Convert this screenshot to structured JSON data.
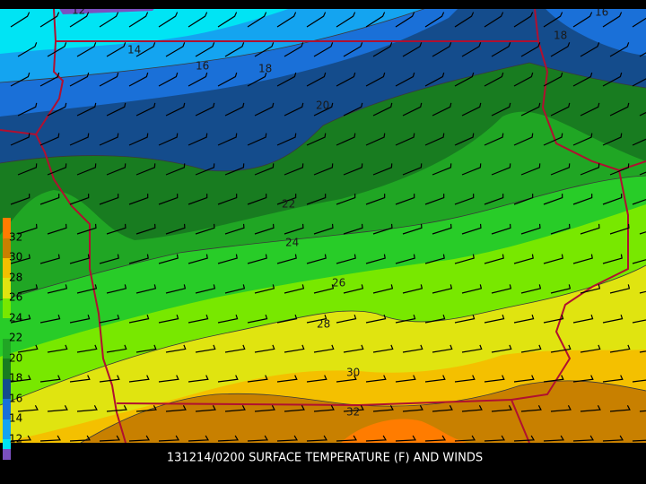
{
  "map": {
    "title": "131214/0200 SURFACE TEMPERATURE (F) AND WINDS",
    "contour_labels": [
      "12",
      "14",
      "16",
      "18",
      "16",
      "18",
      "20",
      "22",
      "24",
      "26",
      "28",
      "30",
      "32"
    ]
  },
  "legend": {
    "labels": [
      "32",
      "30",
      "28",
      "26",
      "24",
      "22",
      "20",
      "18",
      "16",
      "14",
      "12"
    ]
  }
}
